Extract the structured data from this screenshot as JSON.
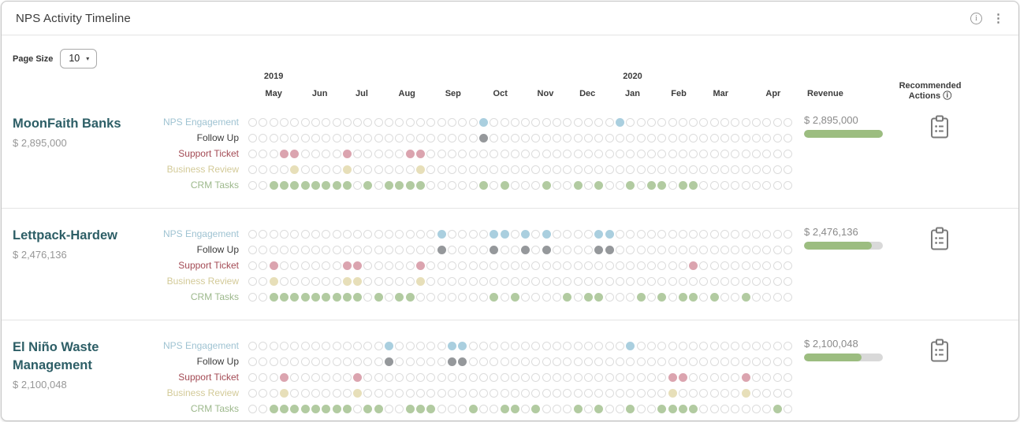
{
  "header": {
    "title": "NPS Activity Timeline"
  },
  "icons": {
    "info": "i",
    "kebab": "⋮",
    "caret": "▾",
    "actions_info": "ⓘ"
  },
  "controls": {
    "page_size_label": "Page Size",
    "page_size_value": "10"
  },
  "timeline_header": {
    "revenue_label": "Revenue",
    "actions_label_line1": "Recommended",
    "actions_label_line2": "Actions",
    "weeks_total": 52,
    "months": [
      {
        "label": "May",
        "year": "2019",
        "week": 2.0
      },
      {
        "label": "Jun",
        "week": 6.4
      },
      {
        "label": "Jul",
        "week": 10.4
      },
      {
        "label": "Aug",
        "week": 14.7
      },
      {
        "label": "Sep",
        "week": 19.1
      },
      {
        "label": "Oct",
        "week": 23.6
      },
      {
        "label": "Nov",
        "week": 27.9
      },
      {
        "label": "Dec",
        "week": 31.9
      },
      {
        "label": "Jan",
        "year": "2020",
        "week": 36.2
      },
      {
        "label": "Feb",
        "week": 40.6
      },
      {
        "label": "Mar",
        "week": 44.6
      },
      {
        "label": "Apr",
        "week": 49.6
      }
    ]
  },
  "activity_types": [
    {
      "key": "nps_engagement",
      "label": "NPS Engagement",
      "label_color": "#9fc3d2",
      "dot_color": "#aacfdf"
    },
    {
      "key": "follow_up",
      "label": "Follow Up",
      "label_color": "#3b3b3b",
      "dot_color": "#95989b"
    },
    {
      "key": "support_ticket",
      "label": "Support Ticket",
      "label_color": "#a34a54",
      "dot_color": "#dba4af"
    },
    {
      "key": "business_review",
      "label": "Business Review",
      "label_color": "#d3ca98",
      "dot_color": "#e7dfb9"
    },
    {
      "key": "crm_tasks",
      "label": "CRM Tasks",
      "label_color": "#9cb88b",
      "dot_color": "#b2cba1"
    }
  ],
  "companies": [
    {
      "name": "MoonFaith Banks",
      "revenue_text": "$ 2,895,000",
      "revenue_bar_pct": 100,
      "activity_weeks": {
        "nps_engagement": [
          22,
          35
        ],
        "follow_up": [
          22
        ],
        "support_ticket": [
          3,
          4,
          9,
          15,
          16
        ],
        "business_review": [
          4,
          9,
          16
        ],
        "crm_tasks": [
          2,
          3,
          4,
          5,
          6,
          7,
          8,
          9,
          11,
          13,
          14,
          15,
          16,
          22,
          24,
          28,
          31,
          33,
          36,
          38,
          39,
          41,
          42
        ]
      }
    },
    {
      "name": "Lettpack-Hardew",
      "revenue_text": "$ 2,476,136",
      "revenue_bar_pct": 86,
      "activity_weeks": {
        "nps_engagement": [
          18,
          23,
          24,
          26,
          28,
          33,
          34
        ],
        "follow_up": [
          18,
          23,
          26,
          28,
          33,
          34
        ],
        "support_ticket": [
          2,
          9,
          10,
          16,
          42
        ],
        "business_review": [
          2,
          9,
          10,
          16
        ],
        "crm_tasks": [
          2,
          3,
          4,
          5,
          6,
          7,
          8,
          9,
          10,
          12,
          14,
          15,
          23,
          25,
          30,
          32,
          33,
          37,
          39,
          41,
          42,
          44,
          47
        ]
      }
    },
    {
      "name": "El Niño Waste Management",
      "revenue_text": "$ 2,100,048",
      "revenue_bar_pct": 73,
      "activity_weeks": {
        "nps_engagement": [
          13,
          19,
          20,
          36
        ],
        "follow_up": [
          13,
          19,
          20
        ],
        "support_ticket": [
          3,
          10,
          40,
          41,
          47
        ],
        "business_review": [
          3,
          10,
          40,
          47
        ],
        "crm_tasks": [
          2,
          3,
          4,
          5,
          6,
          7,
          8,
          9,
          11,
          12,
          15,
          16,
          17,
          21,
          24,
          25,
          27,
          31,
          33,
          36,
          39,
          40,
          41,
          42,
          50
        ]
      }
    }
  ],
  "colors": {
    "accent_teal": "#2d5e66",
    "revenue_bar_fill": "#9cbd80",
    "revenue_bar_track": "#d9d9d9",
    "empty_dot_border": "#dcdcdc",
    "muted_text": "#8a8a8a"
  }
}
